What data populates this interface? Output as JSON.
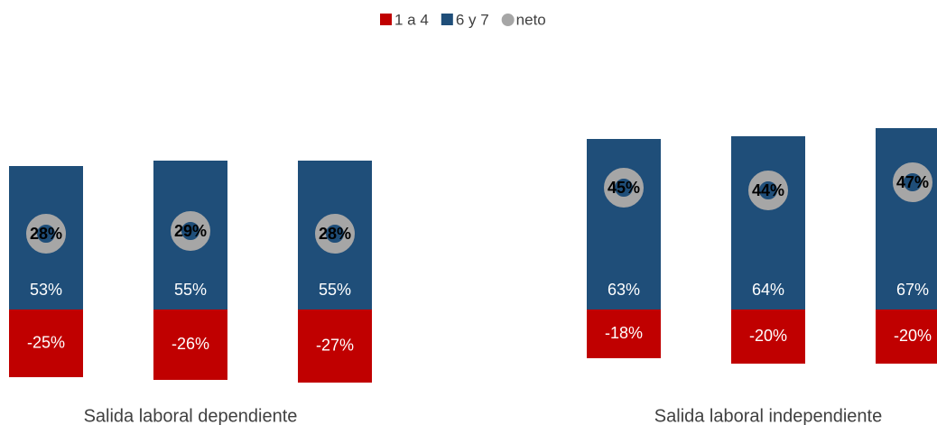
{
  "chart_data": {
    "type": "stacked_bar",
    "category_groups": [
      "Salida laboral dependiente",
      "Salida laboral independiente"
    ],
    "categories": [
      null,
      null,
      null,
      null,
      null,
      null
    ],
    "series": [
      {
        "name": "1 a 4",
        "color": "#c00000",
        "values": [
          -25,
          -26,
          -27,
          -18,
          -20,
          -20
        ],
        "value_labels": [
          "-25%",
          "-26%",
          "-27%",
          "-18%",
          "-20%",
          "-20%"
        ]
      },
      {
        "name": "6 y 7",
        "color": "#1f4e79",
        "values": [
          53,
          55,
          55,
          63,
          64,
          67
        ],
        "value_labels": [
          "53%",
          "55%",
          "55%",
          "63%",
          "64%",
          "67%"
        ]
      },
      {
        "name": "neto",
        "color": "#a6a6a6",
        "marker": "circle",
        "values": [
          28,
          29,
          28,
          45,
          44,
          47
        ],
        "value_labels": [
          "28%",
          "29%",
          "28%",
          "45%",
          "44%",
          "47%"
        ]
      }
    ],
    "legend": "top"
  }
}
